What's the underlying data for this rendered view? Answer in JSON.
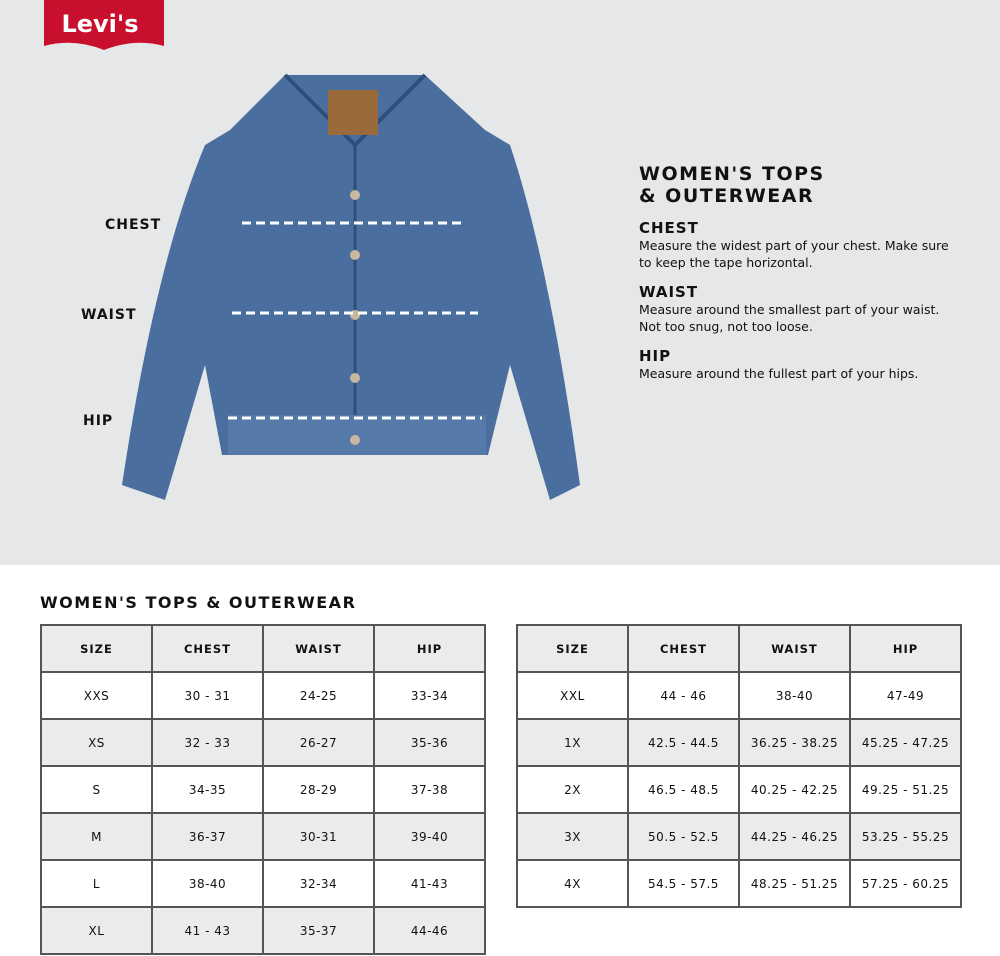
{
  "brand": {
    "logo_text": "Levi's",
    "color": "#c8102e"
  },
  "diagram": {
    "labels": {
      "chest": "CHEST",
      "waist": "WAIST",
      "hip": "HIP"
    },
    "jacket_color": "#4a6f9e"
  },
  "info": {
    "title": "WOMEN'S TOPS & OUTERWEAR",
    "sections": [
      {
        "heading": "CHEST",
        "text": "Measure the widest part of your chest. Make sure to keep the tape horizontal."
      },
      {
        "heading": "WAIST",
        "text": "Measure around the smallest part of your waist. Not too snug, not too loose."
      },
      {
        "heading": "HIP",
        "text": "Measure around the fullest part of your hips."
      }
    ]
  },
  "size_chart": {
    "title": "WOMEN'S TOPS & OUTERWEAR",
    "headers": [
      "SIZE",
      "CHEST",
      "WAIST",
      "HIP"
    ],
    "left_rows": [
      [
        "XXS",
        "30 - 31",
        "24-25",
        "33-34"
      ],
      [
        "XS",
        "32 - 33",
        "26-27",
        "35-36"
      ],
      [
        "S",
        "34-35",
        "28-29",
        "37-38"
      ],
      [
        "M",
        "36-37",
        "30-31",
        "39-40"
      ],
      [
        "L",
        "38-40",
        "32-34",
        "41-43"
      ],
      [
        "XL",
        "41 - 43",
        "35-37",
        "44-46"
      ]
    ],
    "right_rows": [
      [
        "XXL",
        "44 - 46",
        "38-40",
        "47-49"
      ],
      [
        "1X",
        "42.5 - 44.5",
        "36.25 - 38.25",
        "45.25 - 47.25"
      ],
      [
        "2X",
        "46.5 - 48.5",
        "40.25 - 42.25",
        "49.25 - 51.25"
      ],
      [
        "3X",
        "50.5 - 52.5",
        "44.25 - 46.25",
        "53.25 - 55.25"
      ],
      [
        "4X",
        "54.5 - 57.5",
        "48.25 - 51.25",
        "57.25 - 60.25"
      ]
    ]
  }
}
